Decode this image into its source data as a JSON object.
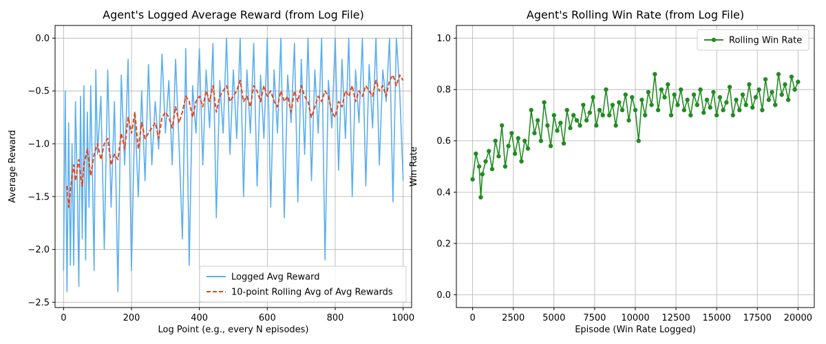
{
  "chart_data": [
    {
      "type": "line",
      "title": "Agent's Logged Average Reward (from Log File)",
      "xlabel": "Log Point (e.g., every N episodes)",
      "ylabel": "Average Reward",
      "xlim": [
        -25,
        1025
      ],
      "ylim": [
        -2.55,
        0.12
      ],
      "xticks": [
        0,
        200,
        400,
        600,
        800,
        1000
      ],
      "xtick_labels": [
        "0",
        "200",
        "400",
        "600",
        "800",
        "1000"
      ],
      "yticks": [
        -2.5,
        -2.0,
        -1.5,
        -1.0,
        -0.5,
        0.0
      ],
      "ytick_labels": [
        "−2.5",
        "−2.0",
        "−1.5",
        "−1.0",
        "−0.5",
        "0.0"
      ],
      "grid": true,
      "legend_position": "lower-right",
      "series": [
        {
          "name": "Logged Avg Reward",
          "color": "#5aaef0",
          "style": "solid",
          "x": [
            0,
            5,
            10,
            15,
            20,
            25,
            30,
            35,
            40,
            45,
            50,
            55,
            60,
            65,
            70,
            75,
            80,
            85,
            90,
            95,
            100,
            110,
            120,
            130,
            140,
            150,
            160,
            170,
            180,
            190,
            200,
            210,
            220,
            230,
            240,
            250,
            260,
            270,
            280,
            290,
            300,
            310,
            320,
            330,
            340,
            350,
            360,
            370,
            380,
            390,
            400,
            410,
            420,
            430,
            440,
            450,
            460,
            470,
            480,
            490,
            500,
            510,
            520,
            530,
            540,
            550,
            560,
            570,
            580,
            590,
            600,
            610,
            620,
            630,
            640,
            650,
            660,
            670,
            680,
            690,
            700,
            710,
            720,
            730,
            740,
            750,
            760,
            770,
            780,
            790,
            800,
            810,
            820,
            830,
            840,
            850,
            860,
            870,
            880,
            890,
            900,
            910,
            920,
            930,
            940,
            950,
            960,
            970,
            980,
            990,
            1000
          ],
          "values": [
            -2.2,
            -0.5,
            -2.4,
            -0.8,
            -2.15,
            -1.0,
            -2.15,
            -0.6,
            -1.3,
            -2.35,
            -0.55,
            -1.9,
            -0.45,
            -2.1,
            -0.7,
            -1.6,
            -0.45,
            -1.3,
            -2.2,
            -0.3,
            -1.1,
            -0.55,
            -2.0,
            -0.3,
            -1.6,
            -0.6,
            -2.4,
            -0.35,
            -1.2,
            -0.2,
            -2.2,
            -0.7,
            -1.5,
            -0.5,
            -1.35,
            -0.25,
            -1.2,
            -0.6,
            -1.05,
            -0.15,
            -0.9,
            -0.4,
            -1.2,
            -0.2,
            -1.0,
            -1.9,
            -0.1,
            -2.15,
            -0.45,
            -0.9,
            -0.1,
            -1.2,
            -0.3,
            -0.85,
            -0.05,
            -1.7,
            -0.4,
            -0.9,
            0.0,
            -1.1,
            -0.3,
            -0.95,
            0.0,
            -1.5,
            -0.3,
            -0.9,
            -0.05,
            -1.4,
            -0.35,
            -0.95,
            0.0,
            -1.6,
            -0.3,
            -0.9,
            0.0,
            -1.7,
            -0.35,
            -0.8,
            -0.05,
            -1.55,
            -0.2,
            -1.1,
            0.0,
            -1.35,
            -0.3,
            -0.9,
            0.0,
            -2.1,
            -0.4,
            -0.85,
            0.0,
            -1.25,
            -0.2,
            -0.95,
            0.0,
            -1.5,
            -0.3,
            -0.8,
            0.0,
            -1.4,
            -0.25,
            -0.85,
            0.0,
            -1.2,
            -0.3,
            -0.6,
            0.0,
            -1.55,
            0.0,
            -0.5,
            -1.35
          ]
        },
        {
          "name": "10-point Rolling Avg of Avg Rewards",
          "color": "#f0420f",
          "style": "dashed",
          "x": [
            10,
            15,
            20,
            25,
            30,
            35,
            40,
            45,
            50,
            55,
            60,
            70,
            80,
            90,
            100,
            110,
            120,
            130,
            140,
            150,
            160,
            170,
            180,
            190,
            200,
            210,
            220,
            230,
            240,
            250,
            260,
            270,
            280,
            290,
            300,
            310,
            320,
            330,
            340,
            350,
            360,
            370,
            380,
            390,
            400,
            410,
            420,
            430,
            440,
            450,
            460,
            470,
            480,
            490,
            500,
            510,
            520,
            530,
            540,
            550,
            560,
            570,
            580,
            590,
            600,
            610,
            620,
            630,
            640,
            650,
            660,
            670,
            680,
            690,
            700,
            710,
            720,
            730,
            740,
            750,
            760,
            770,
            780,
            790,
            800,
            810,
            820,
            830,
            840,
            850,
            860,
            870,
            880,
            890,
            900,
            910,
            920,
            930,
            940,
            950,
            960,
            970,
            980,
            990,
            1000
          ],
          "values": [
            -1.4,
            -1.6,
            -1.45,
            -1.3,
            -1.2,
            -1.35,
            -1.25,
            -1.15,
            -1.3,
            -1.4,
            -1.2,
            -1.05,
            -1.3,
            -1.1,
            -1.0,
            -1.15,
            -1.0,
            -0.95,
            -1.2,
            -1.1,
            -1.15,
            -0.9,
            -1.05,
            -0.75,
            -0.9,
            -0.7,
            -1.05,
            -0.8,
            -0.95,
            -0.9,
            -0.85,
            -0.8,
            -0.95,
            -0.75,
            -0.7,
            -0.75,
            -0.85,
            -0.65,
            -0.8,
            -0.7,
            -0.55,
            -0.6,
            -0.75,
            -0.6,
            -0.55,
            -0.65,
            -0.5,
            -0.6,
            -0.45,
            -0.7,
            -0.55,
            -0.5,
            -0.45,
            -0.6,
            -0.55,
            -0.5,
            -0.4,
            -0.6,
            -0.55,
            -0.65,
            -0.45,
            -0.5,
            -0.6,
            -0.45,
            -0.55,
            -0.5,
            -0.6,
            -0.65,
            -0.5,
            -0.6,
            -0.55,
            -0.7,
            -0.5,
            -0.6,
            -0.45,
            -0.55,
            -0.6,
            -0.75,
            -0.65,
            -0.55,
            -0.6,
            -0.5,
            -0.55,
            -0.7,
            -0.75,
            -0.6,
            -0.65,
            -0.5,
            -0.55,
            -0.45,
            -0.6,
            -0.5,
            -0.55,
            -0.45,
            -0.5,
            -0.55,
            -0.4,
            -0.5,
            -0.45,
            -0.55,
            -0.4,
            -0.35,
            -0.45,
            -0.35,
            -0.4
          ]
        }
      ]
    },
    {
      "type": "line",
      "title": "Agent's Rolling Win Rate (from Log File)",
      "xlabel": "Episode (Win Rate Logged)",
      "ylabel": "Win Rate",
      "xlim": [
        -1000,
        21000
      ],
      "ylim": [
        -0.05,
        1.05
      ],
      "xticks": [
        0,
        2500,
        5000,
        7500,
        10000,
        12500,
        15000,
        17500,
        20000
      ],
      "xtick_labels": [
        "0",
        "2500",
        "5000",
        "7500",
        "10000",
        "12500",
        "15000",
        "17500",
        "20000"
      ],
      "yticks": [
        0.0,
        0.2,
        0.4,
        0.6,
        0.8,
        1.0
      ],
      "ytick_labels": [
        "0.0",
        "0.2",
        "0.4",
        "0.6",
        "0.8",
        "1.0"
      ],
      "grid": true,
      "legend_position": "top-right",
      "series": [
        {
          "name": "Rolling Win Rate",
          "color": "#228b22",
          "style": "solid-with-markers",
          "x": [
            0,
            200,
            400,
            500,
            600,
            800,
            1000,
            1200,
            1400,
            1600,
            1800,
            2000,
            2200,
            2400,
            2600,
            2800,
            3000,
            3200,
            3400,
            3600,
            3800,
            4000,
            4200,
            4400,
            4600,
            4800,
            5000,
            5200,
            5400,
            5600,
            5800,
            6000,
            6200,
            6400,
            6600,
            6800,
            7000,
            7200,
            7400,
            7600,
            7800,
            8000,
            8200,
            8400,
            8600,
            8800,
            9000,
            9200,
            9400,
            9600,
            9800,
            10000,
            10200,
            10400,
            10600,
            10800,
            11000,
            11200,
            11400,
            11600,
            11800,
            12000,
            12200,
            12400,
            12600,
            12800,
            13000,
            13200,
            13400,
            13600,
            13800,
            14000,
            14200,
            14400,
            14600,
            14800,
            15000,
            15200,
            15400,
            15600,
            15800,
            16000,
            16200,
            16400,
            16600,
            16800,
            17000,
            17200,
            17400,
            17600,
            17800,
            18000,
            18200,
            18400,
            18600,
            18800,
            19000,
            19200,
            19400,
            19600,
            19800,
            20000
          ],
          "values": [
            0.45,
            0.55,
            0.5,
            0.38,
            0.47,
            0.52,
            0.56,
            0.49,
            0.6,
            0.54,
            0.66,
            0.5,
            0.58,
            0.63,
            0.55,
            0.61,
            0.52,
            0.6,
            0.57,
            0.72,
            0.63,
            0.68,
            0.6,
            0.75,
            0.66,
            0.58,
            0.7,
            0.64,
            0.67,
            0.59,
            0.72,
            0.65,
            0.7,
            0.68,
            0.66,
            0.74,
            0.68,
            0.71,
            0.77,
            0.66,
            0.72,
            0.7,
            0.8,
            0.7,
            0.74,
            0.66,
            0.75,
            0.72,
            0.78,
            0.68,
            0.77,
            0.72,
            0.6,
            0.76,
            0.7,
            0.79,
            0.74,
            0.86,
            0.72,
            0.8,
            0.77,
            0.82,
            0.7,
            0.78,
            0.74,
            0.8,
            0.72,
            0.76,
            0.7,
            0.78,
            0.74,
            0.8,
            0.71,
            0.76,
            0.73,
            0.79,
            0.7,
            0.77,
            0.72,
            0.75,
            0.81,
            0.7,
            0.76,
            0.72,
            0.78,
            0.74,
            0.82,
            0.73,
            0.77,
            0.8,
            0.72,
            0.84,
            0.76,
            0.79,
            0.74,
            0.86,
            0.78,
            0.82,
            0.76,
            0.85,
            0.8,
            0.83
          ]
        }
      ]
    }
  ]
}
